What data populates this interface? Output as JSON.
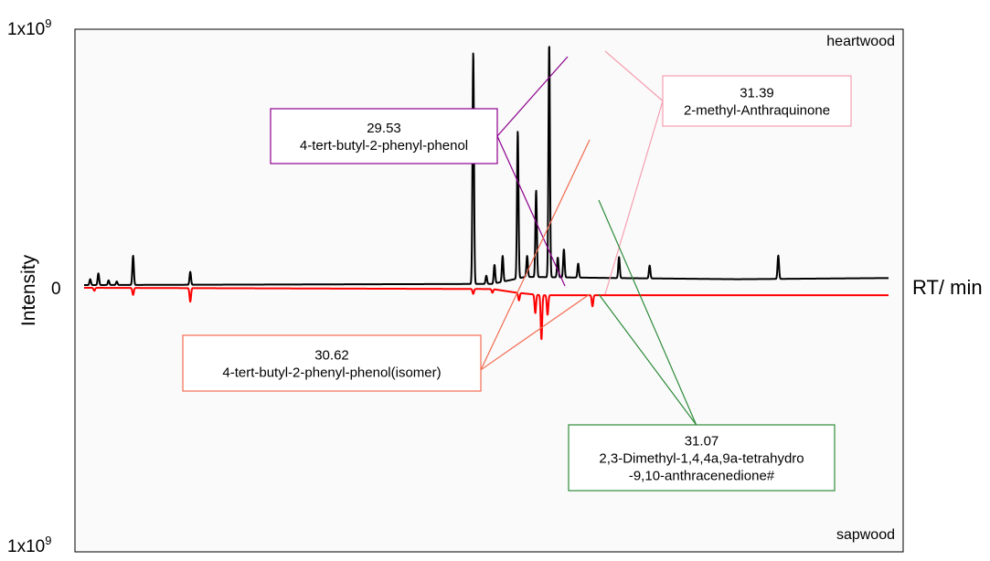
{
  "chart_data": {
    "type": "line",
    "title": "",
    "xlabel": "RT/ min",
    "ylabel": "Intensity",
    "y_ticks": {
      "top": "1x10",
      "zero": "0",
      "bottom": "1x10",
      "exponent": "9"
    },
    "panel_labels": {
      "top": "heartwood",
      "bottom": "sapwood"
    },
    "grid": false,
    "legend": "none",
    "x_range": [
      20.0,
      39.7
    ],
    "series": [
      {
        "name": "heartwood",
        "color": "#000000",
        "direction": "up",
        "baseline": 0.0,
        "drift": [
          [
            20.0,
            0.0
          ],
          [
            30.0,
            0.005
          ],
          [
            30.8,
            0.035
          ],
          [
            33.0,
            0.03
          ],
          [
            36.0,
            0.025
          ],
          [
            39.7,
            0.03
          ]
        ],
        "peaks": [
          {
            "x": 20.15,
            "h": 0.025
          },
          {
            "x": 20.35,
            "h": 0.05
          },
          {
            "x": 20.6,
            "h": 0.02
          },
          {
            "x": 20.8,
            "h": 0.015
          },
          {
            "x": 21.2,
            "h": 0.125
          },
          {
            "x": 22.6,
            "h": 0.055
          },
          {
            "x": 29.53,
            "h": 0.99
          },
          {
            "x": 29.85,
            "h": 0.035
          },
          {
            "x": 30.05,
            "h": 0.08
          },
          {
            "x": 30.25,
            "h": 0.11
          },
          {
            "x": 30.62,
            "h": 0.63
          },
          {
            "x": 30.85,
            "h": 0.09
          },
          {
            "x": 31.07,
            "h": 0.37
          },
          {
            "x": 31.39,
            "h": 1.0
          },
          {
            "x": 31.6,
            "h": 0.085
          },
          {
            "x": 31.75,
            "h": 0.12
          },
          {
            "x": 32.1,
            "h": 0.06
          },
          {
            "x": 33.1,
            "h": 0.09
          },
          {
            "x": 33.85,
            "h": 0.055
          },
          {
            "x": 37.0,
            "h": 0.1
          }
        ]
      },
      {
        "name": "sapwood",
        "color": "#ff0000",
        "direction": "down",
        "baseline": 0.0,
        "drift": [
          [
            20.0,
            0.0
          ],
          [
            30.0,
            0.005
          ],
          [
            30.6,
            0.02
          ],
          [
            31.2,
            0.03
          ],
          [
            39.7,
            0.03
          ]
        ],
        "peaks": [
          {
            "x": 20.25,
            "h": 0.012
          },
          {
            "x": 21.2,
            "h": 0.028
          },
          {
            "x": 22.6,
            "h": 0.055
          },
          {
            "x": 29.53,
            "h": 0.02
          },
          {
            "x": 30.0,
            "h": 0.015
          },
          {
            "x": 30.65,
            "h": 0.03
          },
          {
            "x": 31.05,
            "h": 0.075
          },
          {
            "x": 31.2,
            "h": 0.18
          },
          {
            "x": 31.35,
            "h": 0.08
          },
          {
            "x": 32.45,
            "h": 0.045
          }
        ]
      }
    ],
    "annotations": [
      {
        "rt": "29.53",
        "name": "4-tert-butyl-2-phenyl-phenol",
        "color": "#8b008b"
      },
      {
        "rt": "30.62",
        "name": "4-tert-butyl-2-phenyl-phenol(isomer)",
        "color": "#f26b50"
      },
      {
        "rt": "31.39",
        "name": "2-methyl-Anthraquinone",
        "color": "#f5a0b0"
      },
      {
        "rt": "31.07",
        "name": "2,3-Dimethyl-1,4,4a,9a-tetrahydro",
        "name2": "-9,10-anthracenedione#",
        "color": "#2e8b3a"
      }
    ]
  }
}
